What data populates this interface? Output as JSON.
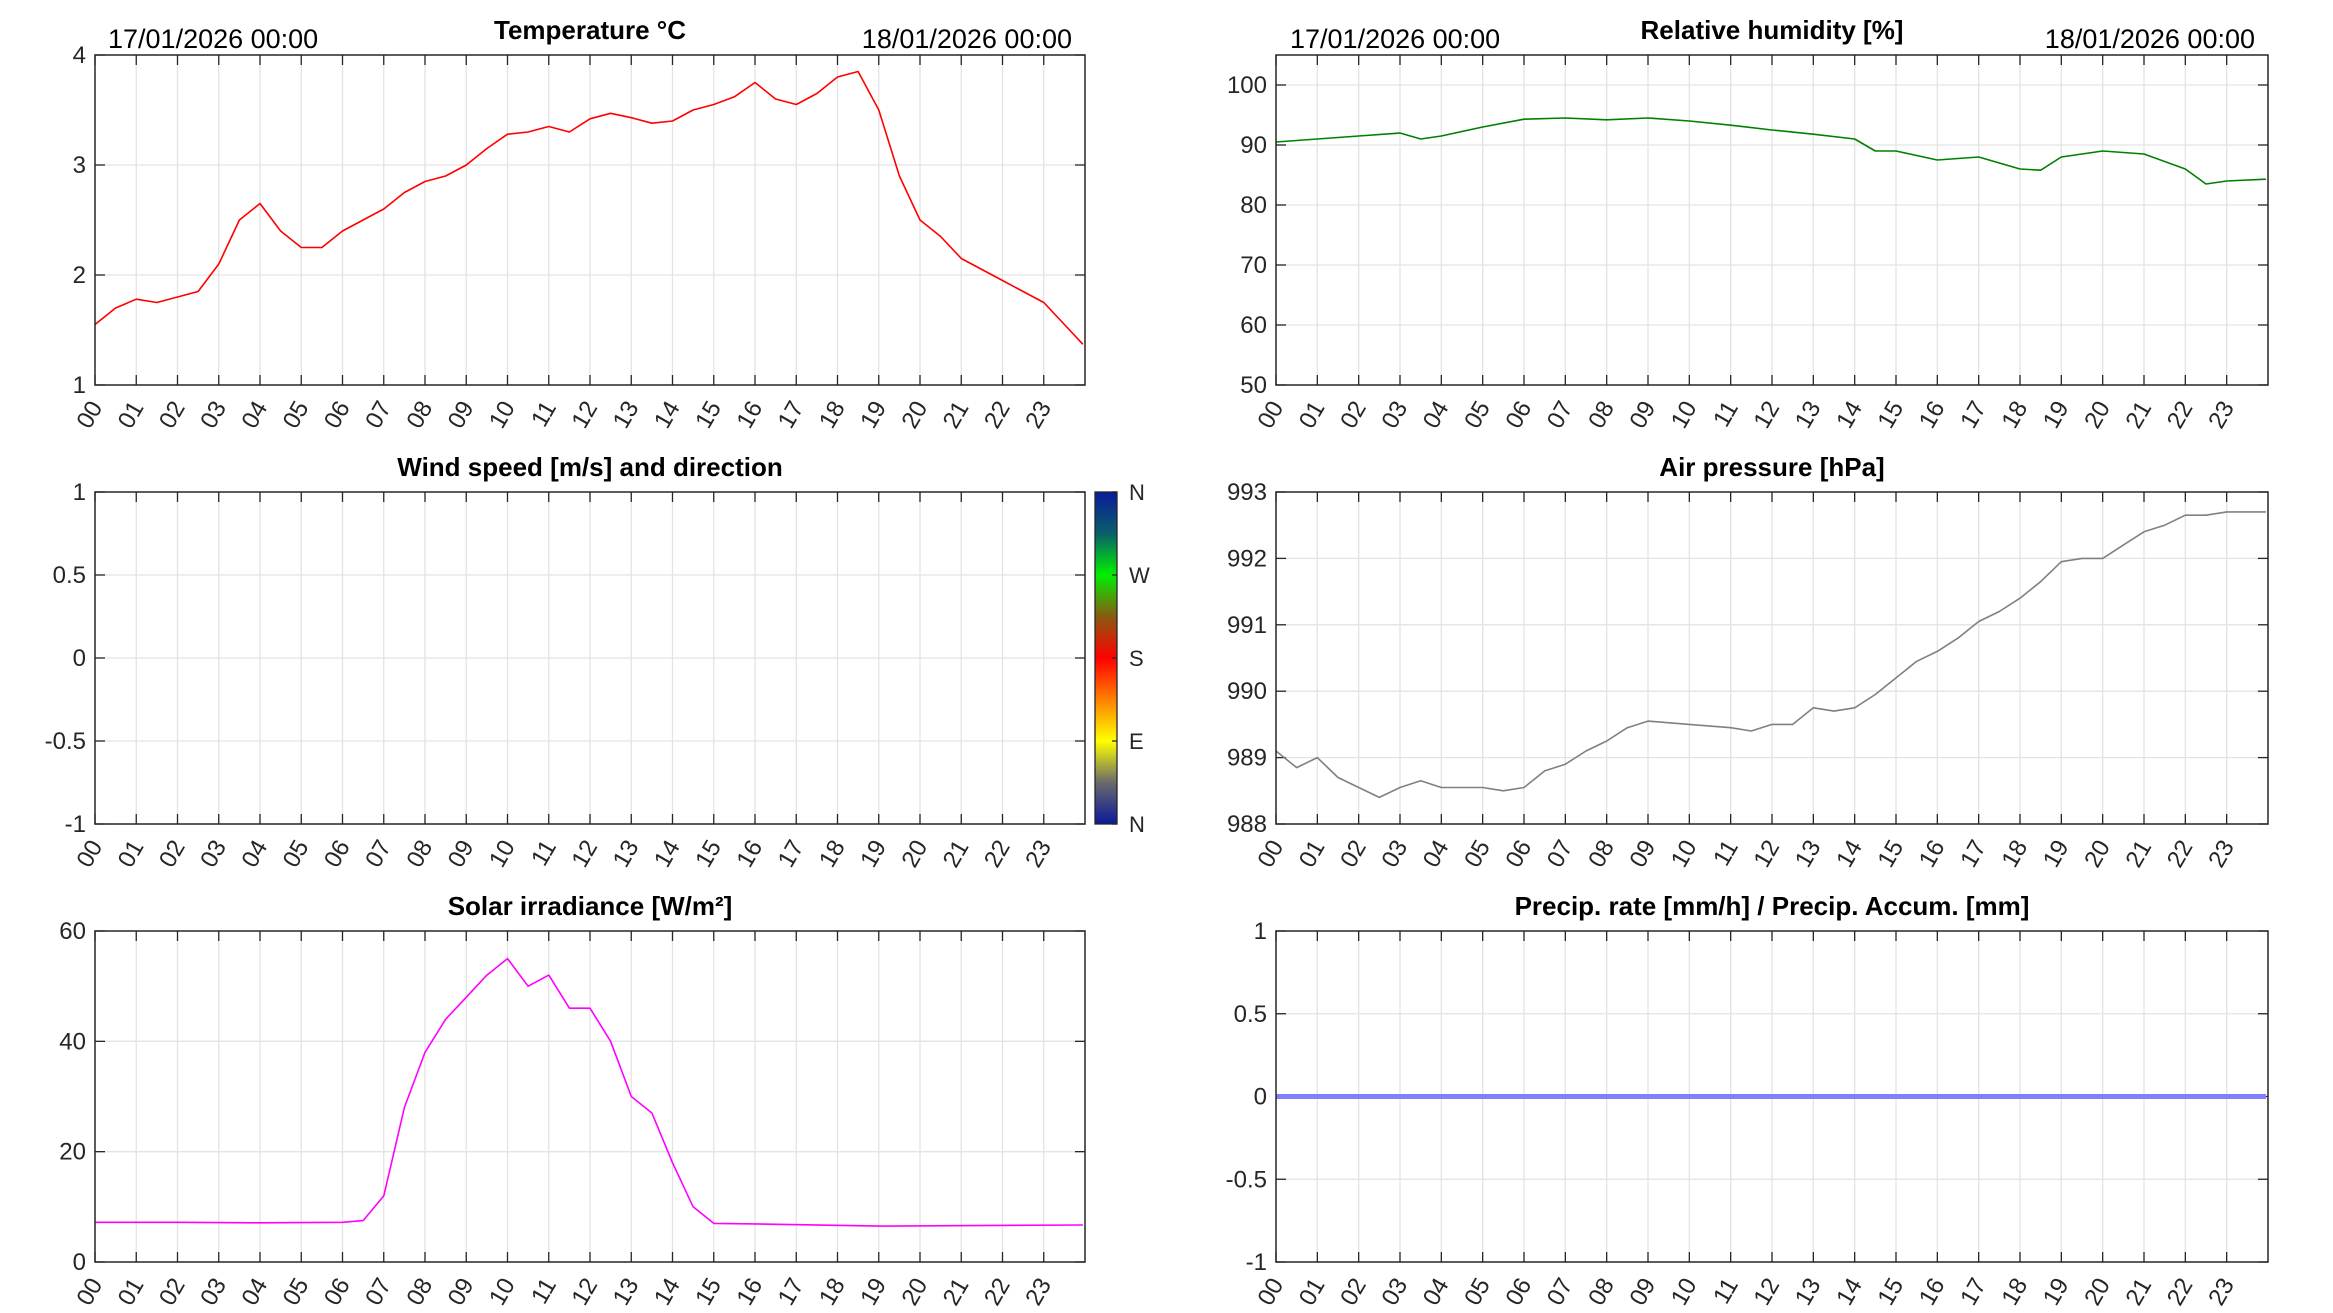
{
  "header": {
    "start_date": "17/01/2026 00:00",
    "end_date": "18/01/2026 00:00",
    "start_date_right": "17/01/2026 00:00",
    "end_date_right": "18/01/2026 00:00"
  },
  "hours": [
    "00",
    "01",
    "02",
    "03",
    "04",
    "05",
    "06",
    "07",
    "08",
    "09",
    "10",
    "11",
    "12",
    "13",
    "14",
    "15",
    "16",
    "17",
    "18",
    "19",
    "20",
    "21",
    "22",
    "23"
  ],
  "colorbar": {
    "labels": [
      "N",
      "W",
      "S",
      "E",
      "N"
    ],
    "colors": [
      "#0a1a9a",
      "#0a5f6a",
      "#00f000",
      "#8a5a10",
      "#ff0000",
      "#ff8000",
      "#ffff00",
      "#6a6a6a",
      "#0a1a9a"
    ]
  },
  "chart_data": [
    {
      "id": "temperature",
      "type": "line",
      "title": "Temperature °C",
      "ylim": [
        1,
        4
      ],
      "yticks": [
        "1",
        "2",
        "3",
        "4"
      ],
      "color": "#ff0000",
      "xlim": [
        0,
        24
      ],
      "x": [
        0,
        0.5,
        1,
        1.5,
        2,
        2.5,
        3,
        3.5,
        4,
        4.5,
        5,
        5.5,
        6,
        6.5,
        7,
        7.5,
        8,
        8.5,
        9,
        9.5,
        10,
        10.5,
        11,
        11.5,
        12,
        12.5,
        13,
        13.5,
        14,
        14.5,
        15,
        15.5,
        16,
        16.5,
        17,
        17.5,
        18,
        18.5,
        19,
        19.5,
        20,
        20.5,
        21,
        21.5,
        22,
        22.5,
        23,
        23.5,
        23.95
      ],
      "y": [
        1.55,
        1.7,
        1.78,
        1.75,
        1.8,
        1.85,
        2.1,
        2.5,
        2.65,
        2.4,
        2.25,
        2.25,
        2.4,
        2.5,
        2.6,
        2.75,
        2.85,
        2.9,
        3.0,
        3.15,
        3.28,
        3.3,
        3.35,
        3.3,
        3.42,
        3.47,
        3.43,
        3.38,
        3.4,
        3.5,
        3.55,
        3.62,
        3.75,
        3.6,
        3.55,
        3.65,
        3.8,
        3.85,
        3.5,
        2.9,
        2.5,
        2.35,
        2.15,
        2.05,
        1.95,
        1.85,
        1.75,
        1.55,
        1.37
      ]
    },
    {
      "id": "humidity",
      "type": "line",
      "title": "Relative humidity [%]",
      "ylim": [
        50,
        105
      ],
      "yticks": [
        "50",
        "60",
        "70",
        "80",
        "90",
        "100"
      ],
      "ytick_values": [
        50,
        60,
        70,
        80,
        90,
        100
      ],
      "color": "#008000",
      "xlim": [
        0,
        24
      ],
      "x": [
        0,
        1,
        2,
        3,
        3.5,
        4,
        5,
        6,
        7,
        8,
        9,
        10,
        11,
        12,
        13,
        14,
        14.5,
        15,
        16,
        17,
        18,
        18.5,
        19,
        20,
        21,
        22,
        22.5,
        23,
        23.95
      ],
      "y": [
        90.5,
        91,
        91.5,
        92,
        91,
        91.5,
        93,
        94.3,
        94.5,
        94.2,
        94.5,
        94,
        93.3,
        92.5,
        91.8,
        91,
        89,
        89,
        87.5,
        88,
        86,
        85.8,
        88,
        89,
        88.5,
        86,
        83.5,
        84,
        84.3
      ]
    },
    {
      "id": "wind",
      "type": "line",
      "title": "Wind speed [m/s] and direction",
      "ylim": [
        -1,
        1
      ],
      "yticks": [
        "-1",
        "-0.5",
        "0",
        "0.5",
        "1"
      ],
      "color": "#000000",
      "xlim": [
        0,
        24
      ],
      "x": [],
      "y": []
    },
    {
      "id": "pressure",
      "type": "line",
      "title": "Air pressure [hPa]",
      "ylim": [
        988,
        993
      ],
      "yticks": [
        "988",
        "989",
        "990",
        "991",
        "992",
        "993"
      ],
      "color": "#808080",
      "xlim": [
        0,
        24
      ],
      "x": [
        0,
        0.5,
        1,
        1.5,
        2,
        2.5,
        3,
        3.5,
        4,
        5,
        5.5,
        6,
        6.5,
        7,
        7.5,
        8,
        8.5,
        9,
        10,
        11,
        11.5,
        12,
        12.5,
        13,
        13.5,
        14,
        14.5,
        15,
        15.5,
        16,
        16.5,
        17,
        17.5,
        18,
        18.5,
        19,
        19.5,
        20,
        20.5,
        21,
        21.5,
        22,
        22.5,
        23,
        23.95
      ],
      "y": [
        989.1,
        988.85,
        989.0,
        988.7,
        988.55,
        988.4,
        988.55,
        988.65,
        988.55,
        988.55,
        988.5,
        988.55,
        988.8,
        988.9,
        989.1,
        989.25,
        989.45,
        989.55,
        989.5,
        989.45,
        989.4,
        989.5,
        989.5,
        989.75,
        989.7,
        989.75,
        989.95,
        990.2,
        990.45,
        990.6,
        990.8,
        991.05,
        991.2,
        991.4,
        991.65,
        991.95,
        992.0,
        992.0,
        992.2,
        992.4,
        992.5,
        992.65,
        992.65,
        992.7,
        992.7
      ]
    },
    {
      "id": "solar",
      "type": "line",
      "title": "Solar irradiance [W/m²]",
      "ylim": [
        0,
        60
      ],
      "yticks": [
        "0",
        "20",
        "40",
        "60"
      ],
      "color": "#ff00ff",
      "xlim": [
        0,
        24
      ],
      "x": [
        0,
        2,
        4,
        6,
        6.5,
        7,
        7.5,
        8,
        8.5,
        9,
        9.5,
        10,
        10.5,
        11,
        11.5,
        12,
        12.5,
        13,
        13.5,
        14,
        14.5,
        15,
        16,
        19,
        23.95
      ],
      "y": [
        7.2,
        7.2,
        7.1,
        7.2,
        7.5,
        12,
        28,
        38,
        44,
        48,
        52,
        55,
        50,
        52,
        46,
        46,
        40,
        30,
        27,
        18,
        10,
        7,
        6.9,
        6.5,
        6.7
      ]
    },
    {
      "id": "precip",
      "type": "line",
      "title": "Precip. rate [mm/h] / Precip. Accum. [mm]",
      "ylim": [
        -1,
        1
      ],
      "yticks": [
        "-1",
        "-0.5",
        "0",
        "0.5",
        "1"
      ],
      "color": "#8080ff",
      "xlim": [
        0,
        24
      ],
      "x": [
        0,
        23.95
      ],
      "y": [
        0,
        0
      ]
    }
  ]
}
